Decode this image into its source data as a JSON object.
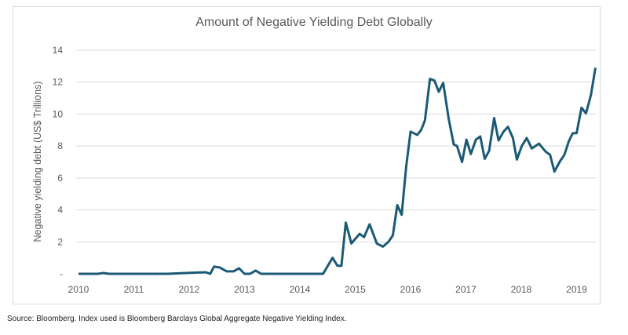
{
  "chart_data": {
    "type": "line",
    "title": "Amount of Negative Yielding Debt Globally",
    "xlabel": "",
    "ylabel": "Negative yielding debt (US$ Trillions)",
    "xlim": [
      2010,
      2019.4
    ],
    "ylim": [
      0,
      14
    ],
    "x_ticks": [
      "2010",
      "2011",
      "2012",
      "2013",
      "2014",
      "2015",
      "2016",
      "2017",
      "2018",
      "2019"
    ],
    "y_ticks": [
      {
        "v": 0,
        "label": "-"
      },
      {
        "v": 2,
        "label": "2"
      },
      {
        "v": 4,
        "label": "4"
      },
      {
        "v": 6,
        "label": "6"
      },
      {
        "v": 8,
        "label": "8"
      },
      {
        "v": 10,
        "label": "10"
      },
      {
        "v": 12,
        "label": "12"
      },
      {
        "v": 14,
        "label": "14"
      }
    ],
    "grid": true,
    "line_color": "#1b5a75",
    "series": [
      {
        "name": "Negative yielding debt",
        "x": [
          2010.0,
          2010.35,
          2010.45,
          2010.55,
          2011.6,
          2012.3,
          2012.38,
          2012.45,
          2012.55,
          2012.68,
          2012.8,
          2012.9,
          2013.0,
          2013.1,
          2013.2,
          2013.3,
          2014.42,
          2014.59,
          2014.68,
          2014.75,
          2014.83,
          2014.93,
          2015.08,
          2015.16,
          2015.26,
          2015.39,
          2015.5,
          2015.6,
          2015.68,
          2015.76,
          2015.84,
          2015.92,
          2016.0,
          2016.12,
          2016.19,
          2016.26,
          2016.35,
          2016.43,
          2016.51,
          2016.59,
          2016.69,
          2016.78,
          2016.84,
          2016.93,
          2017.01,
          2017.09,
          2017.18,
          2017.26,
          2017.34,
          2017.42,
          2017.51,
          2017.59,
          2017.68,
          2017.76,
          2017.85,
          2017.92,
          2018.01,
          2018.1,
          2018.19,
          2018.32,
          2018.44,
          2018.52,
          2018.6,
          2018.7,
          2018.78,
          2018.86,
          2018.93,
          2019.0,
          2019.09,
          2019.17,
          2019.26,
          2019.34
        ],
        "y": [
          0,
          0,
          0.05,
          0,
          0,
          0.1,
          0,
          0.45,
          0.4,
          0.15,
          0.15,
          0.35,
          0,
          0,
          0.2,
          0,
          0,
          1.0,
          0.5,
          0.5,
          3.2,
          1.9,
          2.5,
          2.3,
          3.1,
          1.9,
          1.7,
          2.0,
          2.4,
          4.3,
          3.7,
          6.7,
          8.9,
          8.7,
          9.0,
          9.6,
          12.2,
          12.1,
          11.4,
          11.95,
          9.7,
          8.1,
          8.0,
          7.0,
          8.4,
          7.5,
          8.4,
          8.6,
          7.2,
          7.7,
          9.75,
          8.35,
          8.9,
          9.2,
          8.5,
          7.15,
          8.0,
          8.5,
          7.85,
          8.15,
          7.65,
          7.45,
          6.4,
          7.05,
          7.45,
          8.3,
          8.8,
          8.8,
          10.4,
          10.05,
          11.2,
          12.9
        ]
      }
    ]
  },
  "source_note": "Source: Bloomberg. Index used is Bloomberg Barclays Global Aggregate Negative Yielding Index."
}
